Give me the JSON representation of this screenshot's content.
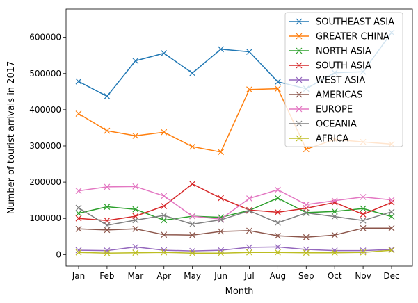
{
  "chart_data": {
    "type": "line",
    "title": "",
    "xlabel": "Month",
    "ylabel": "Number of tourist arrivals in 2017",
    "categories": [
      "Jan",
      "Feb",
      "Mar",
      "Apr",
      "May",
      "Jun",
      "Jul",
      "Aug",
      "Sep",
      "Oct",
      "Nov",
      "Dec"
    ],
    "yticks": [
      0,
      100000,
      200000,
      300000,
      400000,
      500000,
      600000
    ],
    "ylim": [
      -32000,
      678000
    ],
    "grid": false,
    "legend_position": "top-right",
    "marker": "x",
    "series": [
      {
        "name": "SOUTHEAST ASIA",
        "color": "#1f77b4",
        "values": [
          478000,
          437000,
          535000,
          556000,
          501000,
          567000,
          560000,
          477000,
          458000,
          502000,
          505000,
          613000
        ]
      },
      {
        "name": "GREATER CHINA",
        "color": "#ff7f0e",
        "values": [
          389000,
          342000,
          328000,
          338000,
          298000,
          283000,
          456000,
          458000,
          291000,
          318000,
          311000,
          305000
        ]
      },
      {
        "name": "NORTH ASIA",
        "color": "#2ca02c",
        "values": [
          114000,
          132000,
          125000,
          95000,
          106000,
          103000,
          122000,
          156000,
          116000,
          119000,
          127000,
          105000
        ]
      },
      {
        "name": "SOUTH ASIA",
        "color": "#d62728",
        "values": [
          100000,
          94000,
          106000,
          134000,
          195000,
          156000,
          123000,
          117000,
          128000,
          144000,
          111000,
          144000
        ]
      },
      {
        "name": "WEST ASIA",
        "color": "#9467bd",
        "values": [
          12000,
          11000,
          21000,
          12000,
          10000,
          12000,
          20000,
          21000,
          14000,
          11000,
          11000,
          14000
        ]
      },
      {
        "name": "AMERICAS",
        "color": "#8c564b",
        "values": [
          71000,
          68000,
          71000,
          55000,
          54000,
          64000,
          66000,
          52000,
          48000,
          54000,
          73000,
          73000
        ]
      },
      {
        "name": "EUROPE",
        "color": "#e377c2",
        "values": [
          176000,
          187000,
          188000,
          162000,
          106000,
          98000,
          155000,
          179000,
          138000,
          149000,
          159000,
          151000
        ]
      },
      {
        "name": "OCEANIA",
        "color": "#7f7f7f",
        "values": [
          129000,
          81000,
          95000,
          108000,
          84000,
          96000,
          121000,
          88000,
          115000,
          105000,
          94000,
          118000
        ]
      },
      {
        "name": "AFRICA",
        "color": "#bcbd22",
        "values": [
          6000,
          4000,
          5000,
          6000,
          4000,
          4000,
          6000,
          6000,
          5000,
          5000,
          6000,
          12000
        ]
      }
    ]
  }
}
